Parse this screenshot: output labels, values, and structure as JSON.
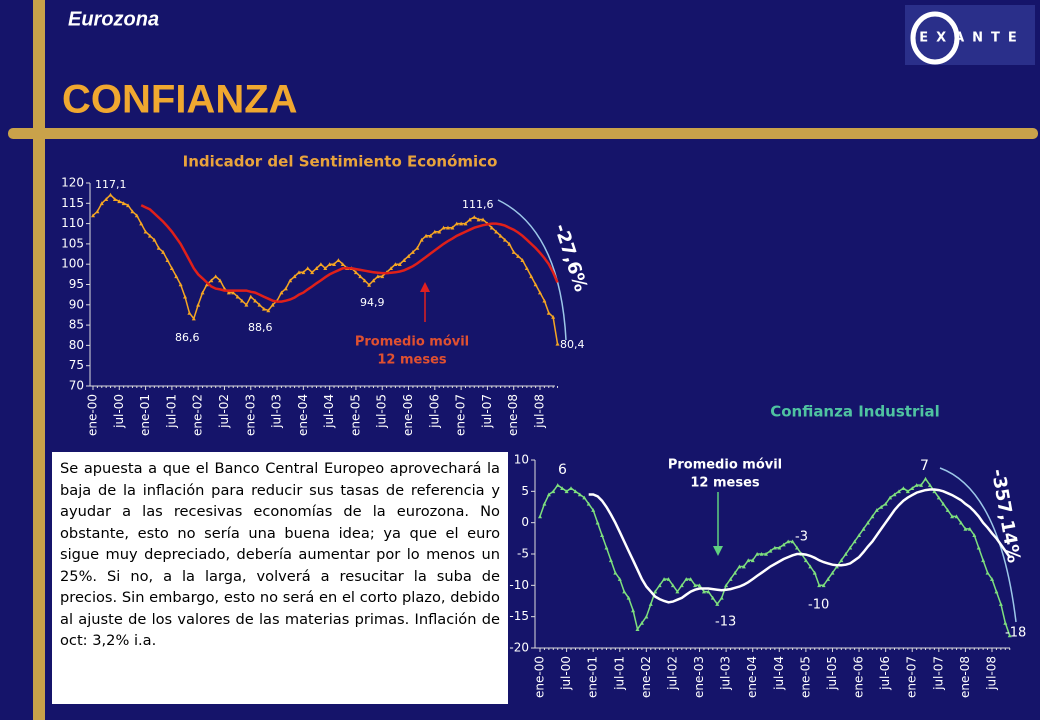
{
  "header": {
    "region": "Eurozona",
    "title": "CONFIANZA",
    "logo": "EXANTE"
  },
  "text": "Se apuesta a que el Banco Central Europeo aprovechará la baja de la inflación para reducir sus tasas de referencia y ayudar a las recesivas economías de la eurozona. No obstante, esto no sería una buena idea; ya que el euro sigue muy depreciado, debería aumentar por lo menos un 25%. Si no, a la larga, volverá a resucitar la suba de precios. Sin embargo, esto no será en el corto plazo, debido al ajuste de los valores de las materias primas. Inflación de oct: 3,2% i.a.",
  "chart_data": [
    {
      "type": "line",
      "title": "Indicador del Sentimiento Económico",
      "categories": [
        "ene-00",
        null,
        null,
        null,
        null,
        null,
        "jul-00",
        null,
        null,
        null,
        null,
        null,
        "ene-01",
        null,
        null,
        null,
        null,
        null,
        "jul-01",
        null,
        null,
        null,
        null,
        null,
        "ene-02",
        null,
        null,
        null,
        null,
        null,
        "jul-02",
        null,
        null,
        null,
        null,
        null,
        "ene-03",
        null,
        null,
        null,
        null,
        null,
        "jul-03",
        null,
        null,
        null,
        null,
        null,
        "ene-04",
        null,
        null,
        null,
        null,
        null,
        "jul-04",
        null,
        null,
        null,
        null,
        null,
        "ene-05",
        null,
        null,
        null,
        null,
        null,
        "jul-05",
        null,
        null,
        null,
        null,
        null,
        "ene-06",
        null,
        null,
        null,
        null,
        null,
        "jul-06",
        null,
        null,
        null,
        null,
        null,
        "ene-07",
        null,
        null,
        null,
        null,
        null,
        "jul-07",
        null,
        null,
        null,
        null,
        null,
        "ene-08",
        null,
        null,
        null,
        null,
        null,
        "jul-08",
        null,
        null,
        null,
        null
      ],
      "ylim": [
        70,
        120
      ],
      "yticks": [
        70,
        75,
        80,
        85,
        90,
        95,
        100,
        105,
        110,
        115,
        120
      ],
      "series": [
        {
          "color": "#f5a623",
          "markers": true,
          "values": [
            112,
            113,
            115,
            116,
            117.1,
            116,
            115.5,
            115,
            114.5,
            113,
            112,
            110,
            108,
            107,
            106,
            104,
            103,
            101,
            99,
            97,
            95,
            92,
            88,
            86.6,
            90,
            93,
            95,
            96,
            97,
            96,
            94,
            93,
            93,
            92,
            91,
            90,
            92,
            91,
            90,
            89,
            88.6,
            90,
            91,
            93,
            94,
            96,
            97,
            98,
            98,
            99,
            98,
            99,
            100,
            99,
            100,
            100,
            101,
            100,
            99,
            99,
            98,
            97,
            96,
            94.9,
            96,
            97,
            97,
            98,
            99,
            100,
            100,
            101,
            102,
            103,
            104,
            106,
            107,
            107,
            108,
            108,
            109,
            109,
            109,
            110,
            110,
            110,
            111,
            111.6,
            111,
            111,
            110,
            109,
            108,
            107,
            106,
            105,
            103,
            102,
            101,
            99,
            97,
            95,
            93,
            91,
            88,
            87,
            80.4
          ]
        },
        {
          "color": "#e0201a",
          "markers": false,
          "values": [
            null,
            null,
            null,
            null,
            null,
            null,
            null,
            null,
            null,
            null,
            null,
            114.5,
            114,
            113.5,
            112.5,
            111.5,
            110.5,
            109.3,
            108,
            106.5,
            105,
            103,
            101,
            99,
            97.5,
            96.5,
            95.5,
            94.5,
            94,
            93.8,
            93.5,
            93.5,
            93.5,
            93.5,
            93.5,
            93.5,
            93.2,
            93,
            92.5,
            92,
            91.5,
            91,
            90.8,
            90.8,
            91,
            91.3,
            91.8,
            92.5,
            93,
            93.8,
            94.5,
            95.3,
            96,
            96.8,
            97.5,
            98,
            98.5,
            99,
            99,
            99,
            98.8,
            98.6,
            98.4,
            98.2,
            98,
            97.9,
            97.8,
            97.8,
            97.9,
            98,
            98.2,
            98.5,
            99,
            99.5,
            100.2,
            101,
            101.8,
            102.6,
            103.4,
            104.2,
            105,
            105.7,
            106.3,
            107,
            107.5,
            108,
            108.5,
            109,
            109.3,
            109.6,
            109.8,
            110,
            110,
            109.8,
            109.5,
            109,
            108.5,
            107.8,
            107,
            106,
            105,
            104,
            102.8,
            101.5,
            100,
            98,
            95.5
          ]
        }
      ],
      "annotations": [
        "117,1",
        "86,6",
        "88,6",
        "94,9",
        "111,6",
        "80,4",
        "-27,6%",
        "Promedio móvil",
        "12 meses"
      ]
    },
    {
      "type": "line",
      "title": "Confianza Industrial",
      "categories": [
        "ene-00",
        null,
        null,
        null,
        null,
        null,
        "jul-00",
        null,
        null,
        null,
        null,
        null,
        "ene-01",
        null,
        null,
        null,
        null,
        null,
        "jul-01",
        null,
        null,
        null,
        null,
        null,
        "ene-02",
        null,
        null,
        null,
        null,
        null,
        "jul-02",
        null,
        null,
        null,
        null,
        null,
        "ene-03",
        null,
        null,
        null,
        null,
        null,
        "jul-03",
        null,
        null,
        null,
        null,
        null,
        "ene-04",
        null,
        null,
        null,
        null,
        null,
        "jul-04",
        null,
        null,
        null,
        null,
        null,
        "ene-05",
        null,
        null,
        null,
        null,
        null,
        "jul-05",
        null,
        null,
        null,
        null,
        null,
        "ene-06",
        null,
        null,
        null,
        null,
        null,
        "jul-06",
        null,
        null,
        null,
        null,
        null,
        "ene-07",
        null,
        null,
        null,
        null,
        null,
        "jul-07",
        null,
        null,
        null,
        null,
        null,
        "ene-08",
        null,
        null,
        null,
        null,
        null,
        "jul-08",
        null,
        null,
        null,
        null
      ],
      "ylim": [
        -20,
        10
      ],
      "yticks": [
        -20,
        -15,
        -10,
        -5,
        0,
        5,
        10
      ],
      "series": [
        {
          "color": "#7ee07e",
          "markers": true,
          "values": [
            1,
            3,
            4.5,
            5,
            6,
            5.5,
            5,
            5.5,
            5,
            4.5,
            4,
            3,
            2,
            0,
            -2,
            -4,
            -6,
            -8,
            -9,
            -11,
            -12,
            -14,
            -17,
            -16,
            -15,
            -13,
            -11,
            -10,
            -9,
            -9,
            -10,
            -11,
            -10,
            -9,
            -9,
            -10,
            -10,
            -11,
            -11,
            -12,
            -13,
            -12,
            -10,
            -9,
            -8,
            -7,
            -7,
            -6,
            -6,
            -5,
            -5,
            -5,
            -4.5,
            -4,
            -4,
            -3.5,
            -3,
            -3,
            -4,
            -5,
            -6,
            -7,
            -8,
            -10,
            -10,
            -9,
            -8,
            -7,
            -6,
            -5,
            -4,
            -3,
            -2,
            -1,
            0,
            1,
            2,
            2.5,
            3,
            4,
            4.5,
            5,
            5.5,
            5,
            5.5,
            6,
            6,
            7,
            6,
            5,
            4,
            3,
            2,
            1,
            1,
            0,
            -1,
            -1,
            -2,
            -4,
            -6,
            -8,
            -9,
            -11,
            -13,
            -16,
            -18
          ]
        },
        {
          "color": "#ffffff",
          "markers": false,
          "values": [
            null,
            null,
            null,
            null,
            null,
            null,
            null,
            null,
            null,
            null,
            null,
            4.5,
            4.5,
            4.2,
            3.5,
            2.5,
            1.3,
            0,
            -1.5,
            -3,
            -4.5,
            -6,
            -7.5,
            -9,
            -10.2,
            -11,
            -11.8,
            -12.2,
            -12.5,
            -12.7,
            -12.6,
            -12.3,
            -12,
            -11.5,
            -11,
            -10.7,
            -10.5,
            -10.5,
            -10.5,
            -10.6,
            -10.7,
            -10.8,
            -10.7,
            -10.6,
            -10.4,
            -10.2,
            -9.9,
            -9.5,
            -9,
            -8.5,
            -8,
            -7.5,
            -7,
            -6.6,
            -6.2,
            -5.8,
            -5.5,
            -5.2,
            -5,
            -5,
            -5.1,
            -5.3,
            -5.6,
            -6,
            -6.3,
            -6.5,
            -6.7,
            -6.8,
            -6.8,
            -6.7,
            -6.5,
            -6,
            -5.5,
            -4.7,
            -3.8,
            -3,
            -2,
            -1,
            0,
            1,
            2,
            2.8,
            3.5,
            4,
            4.4,
            4.8,
            5,
            5.2,
            5.3,
            5.3,
            5.2,
            5,
            4.7,
            4.4,
            4,
            3.6,
            3,
            2.5,
            1.8,
            1,
            0,
            -0.8,
            -1.7,
            -2.5,
            -3.5,
            -4.5,
            -5.5
          ]
        }
      ],
      "annotations": [
        "6",
        "-13",
        "-3",
        "-10",
        "7",
        "-18",
        "-357,14%",
        "Promedio móvil",
        "12 meses"
      ]
    }
  ]
}
